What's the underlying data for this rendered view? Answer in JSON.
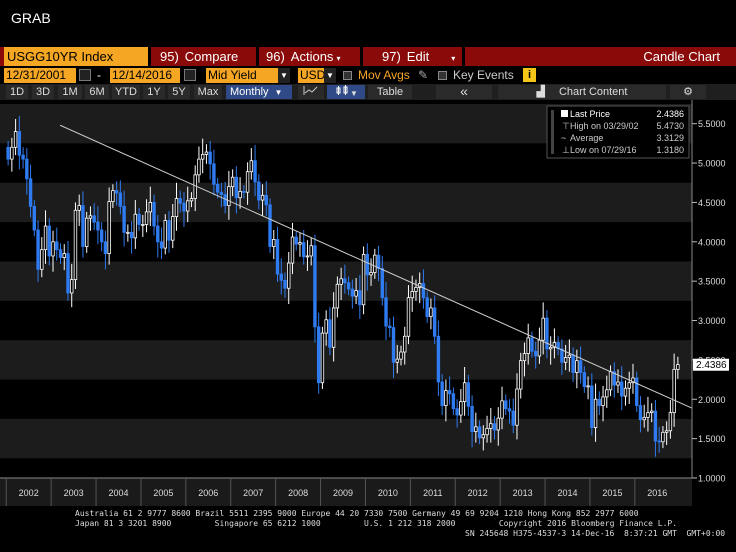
{
  "window": {
    "title": "GRAB"
  },
  "toolbar1": {
    "ticker": "USGG10YR Index",
    "compare_num": "95)",
    "compare_label": "Compare",
    "actions_num": "96)",
    "actions_label": "Actions",
    "edit_num": "97)",
    "edit_label": "Edit",
    "chart_type": "Candle Chart"
  },
  "toolbar2": {
    "start_date": "12/31/2001",
    "end_date": "12/14/2016",
    "dash": "-",
    "field": "Mid Yield",
    "currency": "USD",
    "mov_avgs": "Mov Avgs",
    "key_events": "Key Events",
    "info": "i"
  },
  "toolbar3": {
    "ranges": [
      "1D",
      "3D",
      "1M",
      "6M",
      "YTD",
      "1Y",
      "5Y",
      "Max"
    ],
    "period": "Monthly",
    "table": "Table",
    "collapse": "«",
    "chart_content": "Chart Content",
    "gear": "⚙"
  },
  "legend": {
    "last_label": "Last Price",
    "last_value": "2.4386",
    "high_label": "High on 03/29/02",
    "high_value": "5.4730",
    "avg_label": "Average",
    "avg_value": "3.3129",
    "low_label": "Low on 07/29/16",
    "low_value": "1.3180"
  },
  "chart_data": {
    "type": "candlestick",
    "ylim": [
      1.0,
      5.75
    ],
    "ytick_labels": [
      "1.0000",
      "1.5000",
      "2.0000",
      "2.5000",
      "3.0000",
      "3.5000",
      "4.0000",
      "4.5000",
      "5.0000",
      "5.5000"
    ],
    "yticks": [
      1.0,
      1.5,
      2.0,
      2.5,
      3.0,
      3.5,
      4.0,
      4.5,
      5.0,
      5.5
    ],
    "xtick_labels": [
      "2002",
      "2003",
      "2004",
      "2005",
      "2006",
      "2007",
      "2008",
      "2009",
      "2010",
      "2011",
      "2012",
      "2013",
      "2014",
      "2015",
      "2016"
    ],
    "last_price_label": "2.4386",
    "last_price": 2.4386,
    "trendline": {
      "start": [
        2003.2,
        5.48
      ],
      "end": [
        2017.3,
        1.88
      ]
    },
    "monthly_close": [
      5.05,
      5.2,
      5.4,
      5.1,
      5.05,
      4.8,
      4.45,
      4.15,
      3.65,
      3.9,
      4.2,
      3.82,
      4.0,
      3.9,
      3.8,
      3.85,
      3.35,
      3.52,
      4.4,
      4.46,
      3.94,
      4.3,
      4.33,
      4.25,
      4.15,
      4.0,
      3.85,
      4.51,
      4.65,
      4.62,
      4.45,
      4.12,
      4.12,
      4.05,
      4.35,
      4.22,
      4.22,
      4.38,
      4.5,
      4.2,
      4.0,
      3.92,
      4.27,
      4.02,
      4.32,
      4.55,
      4.49,
      4.39,
      4.52,
      4.55,
      4.85,
      5.05,
      5.11,
      5.14,
      4.99,
      4.73,
      4.63,
      4.6,
      4.46,
      4.7,
      4.82,
      4.56,
      4.64,
      4.63,
      4.89,
      5.03,
      4.76,
      4.53,
      4.59,
      4.47,
      3.94,
      4.03,
      3.59,
      3.51,
      3.41,
      3.73,
      4.06,
      3.97,
      3.99,
      3.81,
      3.82,
      3.95,
      2.92,
      2.21,
      2.84,
      3.01,
      2.66,
      3.16,
      3.46,
      3.53,
      3.48,
      3.4,
      3.31,
      3.38,
      3.2,
      3.84,
      3.58,
      3.61,
      3.83,
      3.66,
      3.29,
      2.93,
      2.91,
      2.47,
      2.51,
      2.6,
      2.8,
      3.29,
      3.37,
      3.42,
      3.47,
      3.29,
      3.05,
      3.16,
      2.8,
      2.22,
      1.92,
      2.11,
      2.07,
      1.88,
      1.8,
      1.97,
      2.21,
      1.91,
      1.59,
      1.65,
      1.51,
      1.55,
      1.63,
      1.69,
      1.61,
      1.76,
      1.98,
      1.88,
      1.85,
      1.67,
      2.13,
      2.49,
      2.58,
      2.78,
      2.61,
      2.55,
      2.75,
      3.03,
      2.64,
      2.66,
      2.72,
      2.64,
      2.47,
      2.53,
      2.56,
      2.34,
      2.49,
      2.34,
      2.16,
      2.17,
      1.64,
      2.0,
      1.92,
      2.03,
      2.12,
      2.35,
      2.18,
      2.22,
      2.04,
      2.14,
      2.21,
      2.27,
      1.92,
      1.74,
      1.77,
      1.83,
      1.85,
      1.47,
      1.46,
      1.58,
      1.6,
      1.83,
      2.38,
      2.44
    ]
  }
}
